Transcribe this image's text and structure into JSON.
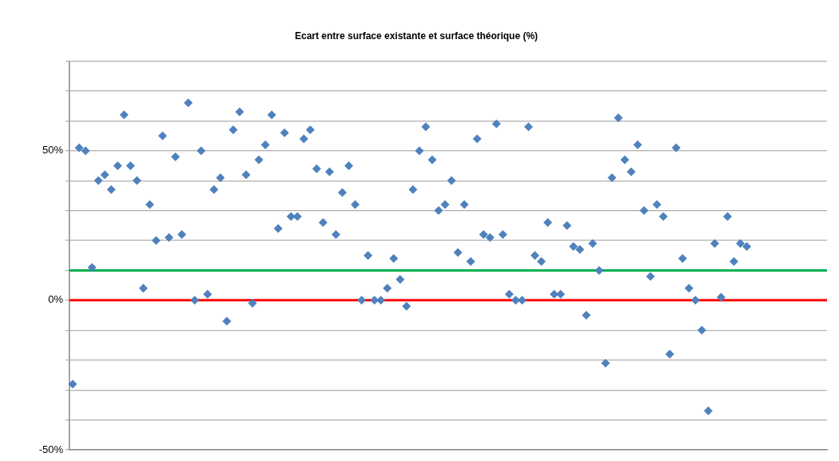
{
  "chart_data": {
    "type": "scatter",
    "title": "Ecart entre surface existante et surface théorique (%)",
    "categories": [
      null,
      null,
      null,
      null,
      null,
      null,
      null,
      null,
      null,
      null,
      null,
      null,
      null,
      null,
      null,
      null,
      null,
      null,
      null,
      null,
      null,
      null,
      null,
      null,
      null,
      null,
      null,
      null,
      null,
      null,
      null,
      null,
      null,
      null,
      null,
      null,
      null,
      null,
      null,
      null,
      null,
      null,
      null,
      null,
      null,
      null,
      null,
      null,
      null,
      null,
      null,
      null,
      null,
      null,
      null,
      null,
      null,
      null,
      null,
      null,
      null,
      null,
      null,
      null,
      null,
      null,
      null,
      null,
      null,
      null,
      null,
      null,
      null,
      null,
      null,
      null,
      null,
      null,
      null,
      null,
      null,
      null,
      null,
      null,
      null,
      null,
      null,
      null,
      null,
      null,
      null,
      null,
      null,
      null,
      null,
      null,
      null,
      null,
      null,
      null,
      null,
      null,
      null,
      null,
      null,
      null,
      null,
      null,
      null,
      null,
      null,
      null,
      null,
      null,
      null,
      null,
      null,
      null
    ],
    "series": [
      {
        "color": "#4f81bd",
        "values": [
          -28,
          51,
          50,
          11,
          40,
          42,
          37,
          45,
          62,
          45,
          40,
          4,
          32,
          20,
          55,
          21,
          48,
          22,
          66,
          0,
          50,
          2,
          37,
          41,
          -7,
          57,
          63,
          42,
          -1,
          47,
          52,
          62,
          24,
          56,
          28,
          28,
          54,
          57,
          44,
          26,
          43,
          22,
          36,
          45,
          32,
          0,
          15,
          0,
          0,
          4,
          14,
          7,
          -2,
          37,
          50,
          58,
          47,
          30,
          32,
          40,
          16,
          32,
          13,
          54,
          22,
          21,
          59,
          22,
          2,
          0,
          0,
          58,
          15,
          13,
          26,
          2,
          2,
          25,
          18,
          17,
          -5,
          19,
          10,
          -21,
          41,
          61,
          47,
          43,
          52,
          30,
          8,
          32,
          28,
          -18,
          51,
          14,
          4,
          0,
          -10,
          -37,
          19,
          1,
          28,
          13,
          19,
          18,
          null,
          null,
          null,
          null,
          null,
          null,
          null,
          null,
          null,
          null,
          null,
          null
        ]
      }
    ],
    "ylim": [
      -50,
      80
    ],
    "yticks": [
      {
        "value": -50,
        "label": "-50%"
      },
      {
        "value": -40,
        "label": null
      },
      {
        "value": -30,
        "label": null
      },
      {
        "value": -20,
        "label": null
      },
      {
        "value": -10,
        "label": null
      },
      {
        "value": 0,
        "label": "0%"
      },
      {
        "value": 10,
        "label": null
      },
      {
        "value": 20,
        "label": null
      },
      {
        "value": 30,
        "label": null
      },
      {
        "value": 40,
        "label": null
      },
      {
        "value": 50,
        "label": "50%"
      },
      {
        "value": 60,
        "label": null
      },
      {
        "value": 70,
        "label": null
      },
      {
        "value": 80,
        "label": null
      }
    ],
    "ref_lines": [
      {
        "axis": "y",
        "value": 10,
        "color": "#00b050"
      },
      {
        "axis": "y",
        "value": 0,
        "color": "#ff0000"
      }
    ],
    "grid": "y",
    "tick_labels": "y",
    "legend": false,
    "marker": "diamond"
  }
}
